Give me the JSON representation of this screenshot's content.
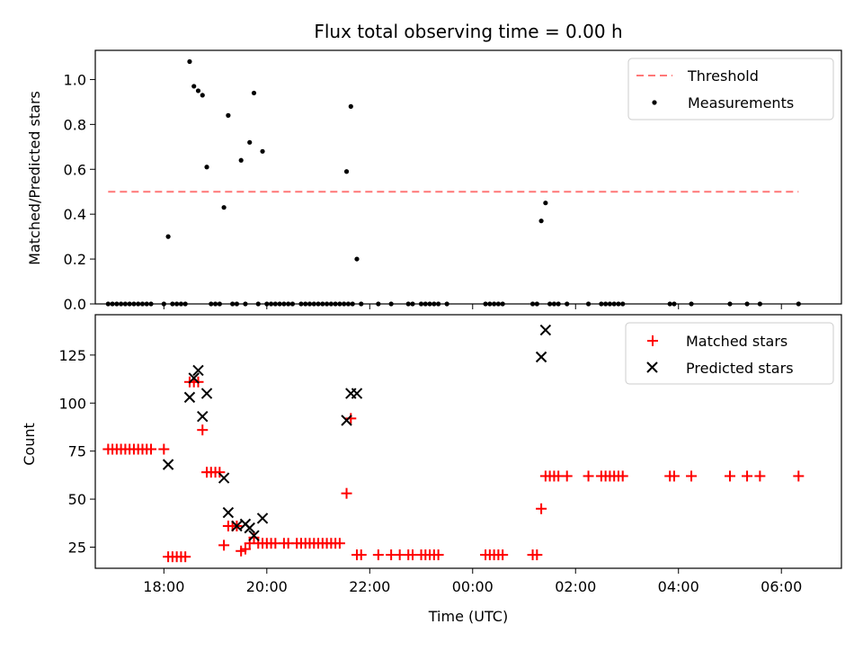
{
  "chart_data": [
    {
      "type": "scatter",
      "title": "Flux total observing time = 0.00 h",
      "xlabel": "",
      "ylabel": "Matched/Predicted stars",
      "xlim": [
        "16:40",
        "07:10"
      ],
      "ylim": [
        0,
        1.13
      ],
      "yticks": [
        "0.0",
        "0.2",
        "0.4",
        "0.6",
        "0.8",
        "1.0"
      ],
      "legend": {
        "placement": "top-right",
        "entries": [
          "Threshold",
          "Measurements"
        ]
      },
      "threshold": {
        "name": "Threshold",
        "value": 0.5,
        "x_start": "16:55",
        "x_end": "06:20",
        "color": "#ff7777",
        "style": "dashed"
      },
      "series": [
        {
          "name": "Measurements",
          "color": "#000000",
          "marker": "dot",
          "points": [
            [
              "16:55",
              0
            ],
            [
              "17:00",
              0
            ],
            [
              "17:05",
              0
            ],
            [
              "17:10",
              0
            ],
            [
              "17:15",
              0
            ],
            [
              "17:20",
              0
            ],
            [
              "17:25",
              0
            ],
            [
              "17:30",
              0
            ],
            [
              "17:35",
              0
            ],
            [
              "17:40",
              0
            ],
            [
              "17:45",
              0
            ],
            [
              "18:00",
              0
            ],
            [
              "18:05",
              0.3
            ],
            [
              "18:10",
              0
            ],
            [
              "18:15",
              0
            ],
            [
              "18:20",
              0
            ],
            [
              "18:25",
              0
            ],
            [
              "18:30",
              1.08
            ],
            [
              "18:35",
              0.97
            ],
            [
              "18:40",
              0.95
            ],
            [
              "18:45",
              0.93
            ],
            [
              "18:50",
              0.61
            ],
            [
              "18:55",
              0
            ],
            [
              "19:00",
              0
            ],
            [
              "19:05",
              0
            ],
            [
              "19:10",
              0.43
            ],
            [
              "19:15",
              0.84
            ],
            [
              "19:20",
              0
            ],
            [
              "19:25",
              0
            ],
            [
              "19:30",
              0.64
            ],
            [
              "19:35",
              0
            ],
            [
              "19:40",
              0.72
            ],
            [
              "19:45",
              0.94
            ],
            [
              "19:50",
              0
            ],
            [
              "19:55",
              0.68
            ],
            [
              "20:00",
              0
            ],
            [
              "20:05",
              0
            ],
            [
              "20:10",
              0
            ],
            [
              "20:15",
              0
            ],
            [
              "20:20",
              0
            ],
            [
              "20:25",
              0
            ],
            [
              "20:30",
              0
            ],
            [
              "20:40",
              0
            ],
            [
              "20:45",
              0
            ],
            [
              "20:50",
              0
            ],
            [
              "20:55",
              0
            ],
            [
              "21:00",
              0
            ],
            [
              "21:05",
              0
            ],
            [
              "21:10",
              0
            ],
            [
              "21:15",
              0
            ],
            [
              "21:20",
              0
            ],
            [
              "21:25",
              0
            ],
            [
              "21:30",
              0
            ],
            [
              "21:35",
              0
            ],
            [
              "21:40",
              0
            ],
            [
              "21:33",
              0.59
            ],
            [
              "21:38",
              0.88
            ],
            [
              "21:45",
              0.2
            ],
            [
              "21:50",
              0
            ],
            [
              "22:10",
              0
            ],
            [
              "22:25",
              0
            ],
            [
              "22:45",
              0
            ],
            [
              "22:50",
              0
            ],
            [
              "23:00",
              0
            ],
            [
              "23:05",
              0
            ],
            [
              "23:10",
              0
            ],
            [
              "23:15",
              0
            ],
            [
              "23:20",
              0
            ],
            [
              "23:30",
              0
            ],
            [
              "00:15",
              0
            ],
            [
              "00:20",
              0
            ],
            [
              "00:25",
              0
            ],
            [
              "00:30",
              0
            ],
            [
              "00:35",
              0
            ],
            [
              "01:10",
              0
            ],
            [
              "01:15",
              0
            ],
            [
              "01:20",
              0.37
            ],
            [
              "01:25",
              0.45
            ],
            [
              "01:30",
              0
            ],
            [
              "01:35",
              0
            ],
            [
              "01:40",
              0
            ],
            [
              "01:50",
              0
            ],
            [
              "02:15",
              0
            ],
            [
              "02:30",
              0
            ],
            [
              "02:35",
              0
            ],
            [
              "02:40",
              0
            ],
            [
              "02:45",
              0
            ],
            [
              "02:50",
              0
            ],
            [
              "02:55",
              0
            ],
            [
              "03:50",
              0
            ],
            [
              "03:55",
              0
            ],
            [
              "04:15",
              0
            ],
            [
              "05:00",
              0
            ],
            [
              "05:20",
              0
            ],
            [
              "05:35",
              0
            ],
            [
              "06:20",
              0
            ]
          ]
        }
      ]
    },
    {
      "type": "scatter",
      "title": "",
      "xlabel": "Time (UTC)",
      "ylabel": "Count",
      "xlim": [
        "16:40",
        "07:10"
      ],
      "ylim": [
        14,
        146
      ],
      "xticks": [
        "18:00",
        "20:00",
        "22:00",
        "00:00",
        "02:00",
        "04:00",
        "06:00"
      ],
      "yticks": [
        "25",
        "50",
        "75",
        "100",
        "125"
      ],
      "legend": {
        "placement": "top-right",
        "entries": [
          "Matched stars",
          "Predicted stars"
        ]
      },
      "series": [
        {
          "name": "Matched stars",
          "color": "#ff0000",
          "marker": "plus",
          "points": [
            [
              "16:55",
              76
            ],
            [
              "17:00",
              76
            ],
            [
              "17:05",
              76
            ],
            [
              "17:10",
              76
            ],
            [
              "17:15",
              76
            ],
            [
              "17:20",
              76
            ],
            [
              "17:25",
              76
            ],
            [
              "17:30",
              76
            ],
            [
              "17:35",
              76
            ],
            [
              "17:40",
              76
            ],
            [
              "17:45",
              76
            ],
            [
              "18:00",
              76
            ],
            [
              "18:05",
              20
            ],
            [
              "18:10",
              20
            ],
            [
              "18:15",
              20
            ],
            [
              "18:20",
              20
            ],
            [
              "18:25",
              20
            ],
            [
              "18:30",
              111
            ],
            [
              "18:35",
              111
            ],
            [
              "18:40",
              111
            ],
            [
              "18:45",
              86
            ],
            [
              "18:50",
              64
            ],
            [
              "18:55",
              64
            ],
            [
              "19:00",
              64
            ],
            [
              "19:05",
              64
            ],
            [
              "19:10",
              26
            ],
            [
              "19:15",
              36
            ],
            [
              "19:20",
              36
            ],
            [
              "19:25",
              36
            ],
            [
              "19:30",
              23
            ],
            [
              "19:35",
              24
            ],
            [
              "19:40",
              27
            ],
            [
              "19:45",
              30
            ],
            [
              "19:50",
              27
            ],
            [
              "19:55",
              27
            ],
            [
              "20:00",
              27
            ],
            [
              "20:05",
              27
            ],
            [
              "20:10",
              27
            ],
            [
              "20:20",
              27
            ],
            [
              "20:25",
              27
            ],
            [
              "20:35",
              27
            ],
            [
              "20:40",
              27
            ],
            [
              "20:45",
              27
            ],
            [
              "20:50",
              27
            ],
            [
              "20:55",
              27
            ],
            [
              "21:00",
              27
            ],
            [
              "21:05",
              27
            ],
            [
              "21:10",
              27
            ],
            [
              "21:15",
              27
            ],
            [
              "21:20",
              27
            ],
            [
              "21:25",
              27
            ],
            [
              "21:33",
              53
            ],
            [
              "21:38",
              92
            ],
            [
              "21:45",
              21
            ],
            [
              "21:50",
              21
            ],
            [
              "22:10",
              21
            ],
            [
              "22:25",
              21
            ],
            [
              "22:35",
              21
            ],
            [
              "22:45",
              21
            ],
            [
              "22:50",
              21
            ],
            [
              "23:00",
              21
            ],
            [
              "23:05",
              21
            ],
            [
              "23:10",
              21
            ],
            [
              "23:15",
              21
            ],
            [
              "23:20",
              21
            ],
            [
              "00:15",
              21
            ],
            [
              "00:20",
              21
            ],
            [
              "00:25",
              21
            ],
            [
              "00:30",
              21
            ],
            [
              "00:35",
              21
            ],
            [
              "01:10",
              21
            ],
            [
              "01:15",
              21
            ],
            [
              "01:20",
              45
            ],
            [
              "01:25",
              62
            ],
            [
              "01:30",
              62
            ],
            [
              "01:35",
              62
            ],
            [
              "01:40",
              62
            ],
            [
              "01:50",
              62
            ],
            [
              "02:15",
              62
            ],
            [
              "02:30",
              62
            ],
            [
              "02:35",
              62
            ],
            [
              "02:40",
              62
            ],
            [
              "02:45",
              62
            ],
            [
              "02:50",
              62
            ],
            [
              "02:55",
              62
            ],
            [
              "03:50",
              62
            ],
            [
              "03:55",
              62
            ],
            [
              "04:15",
              62
            ],
            [
              "05:00",
              62
            ],
            [
              "05:20",
              62
            ],
            [
              "05:35",
              62
            ],
            [
              "06:20",
              62
            ]
          ]
        },
        {
          "name": "Predicted stars",
          "color": "#000000",
          "marker": "x",
          "points": [
            [
              "18:05",
              68
            ],
            [
              "18:30",
              103
            ],
            [
              "18:35",
              113
            ],
            [
              "18:40",
              117
            ],
            [
              "18:45",
              93
            ],
            [
              "18:50",
              105
            ],
            [
              "19:10",
              61
            ],
            [
              "19:15",
              43
            ],
            [
              "19:25",
              36
            ],
            [
              "19:35",
              37
            ],
            [
              "19:40",
              35
            ],
            [
              "19:45",
              31
            ],
            [
              "19:55",
              40
            ],
            [
              "21:33",
              91
            ],
            [
              "21:38",
              105
            ],
            [
              "21:45",
              105
            ],
            [
              "01:20",
              124
            ],
            [
              "01:25",
              138
            ]
          ]
        }
      ]
    }
  ]
}
